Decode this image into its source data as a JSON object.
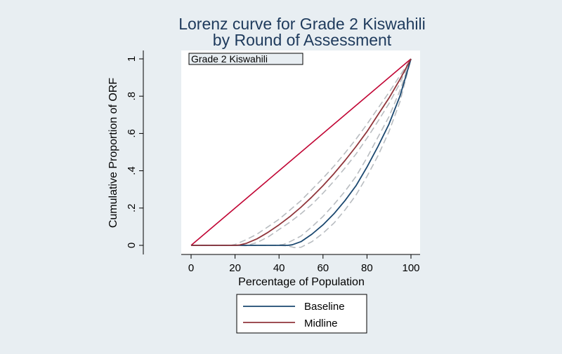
{
  "chart_data": {
    "type": "line",
    "title_lines": [
      "Lorenz curve for Grade 2 Kiswahili",
      "by Round of Assessment"
    ],
    "xlabel": "Percentage of Population",
    "ylabel": "Cumulative Proportion of ORF",
    "xlim": [
      0,
      100
    ],
    "ylim": [
      0,
      1
    ],
    "xticks": [
      0,
      20,
      40,
      60,
      80,
      100
    ],
    "xtick_labels": [
      "0",
      "20",
      "40",
      "60",
      "80",
      "100"
    ],
    "yticks": [
      0,
      0.2,
      0.4,
      0.6,
      0.8,
      1
    ],
    "ytick_labels": [
      "0",
      ".2",
      ".4",
      ".6",
      ".8",
      "1"
    ],
    "grid": false,
    "subtitle_box": "Grade 2 Kiswahili",
    "legend_position": "bottom",
    "series": [
      {
        "name": "Baseline",
        "color": "#1a476f",
        "x": [
          0,
          20,
          30,
          40,
          44,
          46,
          50,
          55,
          60,
          65,
          70,
          75,
          80,
          85,
          90,
          95,
          100
        ],
        "y": [
          0,
          0,
          0,
          0,
          0,
          0.003,
          0.02,
          0.06,
          0.11,
          0.17,
          0.24,
          0.32,
          0.42,
          0.53,
          0.65,
          0.8,
          1.0
        ]
      },
      {
        "name": "Midline",
        "color": "#90353b",
        "x": [
          0,
          10,
          20,
          22,
          25,
          30,
          35,
          40,
          45,
          50,
          55,
          60,
          65,
          70,
          75,
          80,
          85,
          90,
          95,
          100
        ],
        "y": [
          0,
          0,
          0,
          0.002,
          0.01,
          0.035,
          0.07,
          0.11,
          0.155,
          0.205,
          0.26,
          0.32,
          0.385,
          0.455,
          0.53,
          0.61,
          0.7,
          0.79,
          0.89,
          1.0
        ]
      }
    ],
    "confidence_bands": [
      {
        "series": "Baseline",
        "color": "#b8bcc0",
        "lower": {
          "x": [
            0,
            40,
            44,
            47,
            50,
            55,
            60,
            65,
            70,
            75,
            80,
            85,
            90,
            95,
            100
          ],
          "y": [
            0,
            0,
            -0.003,
            -0.012,
            -0.01,
            0.02,
            0.065,
            0.12,
            0.19,
            0.27,
            0.37,
            0.48,
            0.61,
            0.77,
            1.0
          ]
        },
        "upper": {
          "x": [
            0,
            38,
            42,
            45,
            50,
            55,
            60,
            65,
            70,
            75,
            80,
            85,
            90,
            95,
            100
          ],
          "y": [
            0,
            0,
            0.005,
            0.02,
            0.05,
            0.1,
            0.155,
            0.22,
            0.29,
            0.37,
            0.47,
            0.58,
            0.69,
            0.83,
            1.0
          ]
        }
      },
      {
        "series": "Midline",
        "color": "#b8bcc0",
        "lower": {
          "x": [
            0,
            20,
            25,
            30,
            35,
            40,
            45,
            50,
            55,
            60,
            65,
            70,
            75,
            80,
            85,
            90,
            95,
            100
          ],
          "y": [
            0,
            0,
            -0.002,
            0.015,
            0.045,
            0.085,
            0.125,
            0.17,
            0.22,
            0.28,
            0.345,
            0.415,
            0.49,
            0.575,
            0.665,
            0.76,
            0.87,
            1.0
          ]
        },
        "upper": {
          "x": [
            0,
            18,
            20,
            25,
            30,
            35,
            40,
            45,
            50,
            55,
            60,
            65,
            70,
            75,
            80,
            85,
            90,
            95,
            100
          ],
          "y": [
            0,
            0,
            0.005,
            0.03,
            0.06,
            0.1,
            0.14,
            0.19,
            0.24,
            0.3,
            0.36,
            0.425,
            0.495,
            0.57,
            0.65,
            0.735,
            0.82,
            0.91,
            1.0
          ]
        }
      }
    ],
    "equality_line": {
      "color": "#c10534",
      "x": [
        0,
        100
      ],
      "y": [
        0,
        1
      ]
    }
  }
}
